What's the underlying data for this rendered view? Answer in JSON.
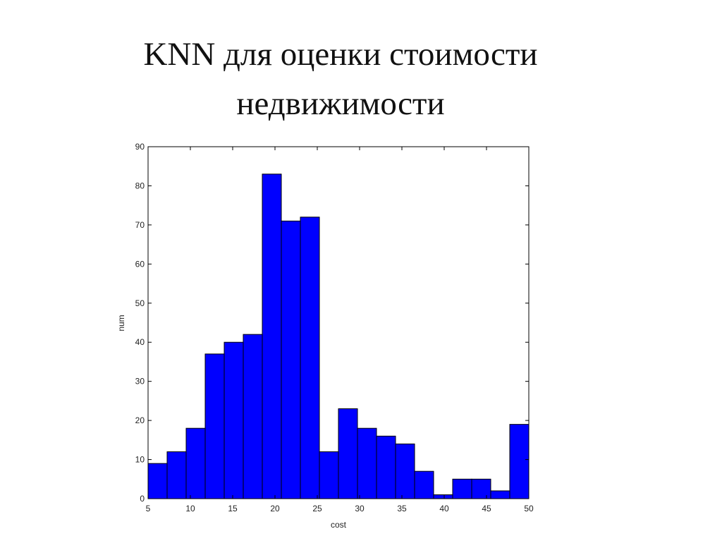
{
  "chart_data": {
    "type": "histogram",
    "title": "KNN для оценки стоимости недвижимости",
    "x_label": "cost",
    "y_label": "num",
    "color": "#0000ff",
    "bins": [
      5,
      7.25,
      9.5,
      11.75,
      14,
      16.25,
      18.5,
      20.75,
      23,
      25.25,
      27.5,
      29.75,
      32,
      34.25,
      36.5,
      38.75,
      41,
      43.25,
      45.5,
      47.75,
      50
    ],
    "values": [
      9,
      12,
      18,
      37,
      40,
      42,
      83,
      71,
      72,
      12,
      23,
      18,
      16,
      14,
      7,
      1,
      5,
      5,
      2,
      19
    ],
    "xlim": [
      5,
      50
    ],
    "xticks": [
      5,
      10,
      15,
      20,
      25,
      30,
      35,
      40,
      45,
      50
    ],
    "ylim": [
      0,
      90
    ],
    "yticks": [
      0,
      10,
      20,
      30,
      40,
      50,
      60,
      70,
      80,
      90
    ]
  }
}
